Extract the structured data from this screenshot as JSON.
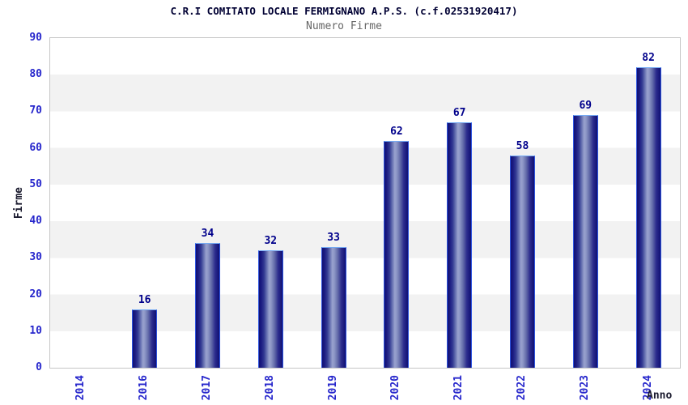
{
  "header": {
    "title": "C.R.I COMITATO LOCALE FERMIGNANO A.P.S. (c.f.02531920417)",
    "subtitle": "Numero Firme"
  },
  "chart_data": {
    "type": "bar",
    "title": "C.R.I COMITATO LOCALE FERMIGNANO A.P.S. (c.f.02531920417)",
    "subtitle": "Numero Firme",
    "xlabel": "Anno",
    "ylabel": "Firme",
    "categories": [
      "2014",
      "2016",
      "2017",
      "2018",
      "2019",
      "2020",
      "2021",
      "2022",
      "2023",
      "2024"
    ],
    "values": [
      0,
      16,
      34,
      32,
      33,
      62,
      67,
      58,
      69,
      82
    ],
    "ylim": [
      0,
      90
    ],
    "yticks": [
      0,
      10,
      20,
      30,
      40,
      50,
      60,
      70,
      80,
      90
    ],
    "grid": "alternating-horizontal-bands",
    "legend_position": "none",
    "colors": {
      "bar_dark": "#101073",
      "bar_light": "#99a2ce",
      "bar_border_side": "#2e55e0",
      "bar_border_top": "#74aaf4",
      "axis_tick_label": "#2727cc",
      "value_label": "#00008b",
      "title_text": "#000033",
      "subtitle_text": "#666666",
      "axis_title_text": "#1a1a2e",
      "band_gray": "#f2f2f2",
      "band_white": "#ffffff",
      "plot_frame": "#c6c6c6"
    }
  }
}
